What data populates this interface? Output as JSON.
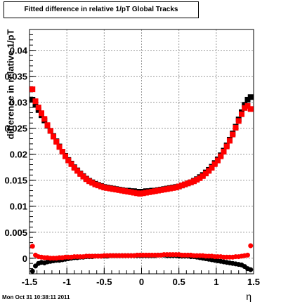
{
  "title": "Fitted difference in relative 1/pT  Global Tracks",
  "timestamp": "Mon Oct 31 10:38:11 2011",
  "chart_data": {
    "type": "scatter",
    "title": "Fitted difference in relative 1/pT  Global Tracks",
    "xlabel": "η",
    "ylabel": "difference in relative 1/pT",
    "xlim": [
      -1.5,
      1.5
    ],
    "ylim": [
      -0.003,
      0.044
    ],
    "xticks": [
      -1.5,
      -1,
      -0.5,
      0,
      0.5,
      1,
      1.5
    ],
    "xtick_labels": [
      "-1.5",
      "-1",
      "-0.5",
      "0",
      "0.5",
      "1",
      "1.5"
    ],
    "yticks": [
      0,
      0.005,
      0.01,
      0.015,
      0.02,
      0.025,
      0.03,
      0.035,
      0.04
    ],
    "ytick_labels": [
      "0",
      "0.005",
      "0.01",
      "0.015",
      "0.02",
      "0.025",
      "0.03",
      "0.035",
      "0.04"
    ],
    "grid": true,
    "legend": false,
    "colors": {
      "black": "#000000",
      "red": "#ff0000"
    },
    "x": [
      -1.46,
      -1.42,
      -1.38,
      -1.34,
      -1.3,
      -1.26,
      -1.22,
      -1.18,
      -1.14,
      -1.1,
      -1.06,
      -1.02,
      -0.98,
      -0.94,
      -0.9,
      -0.86,
      -0.82,
      -0.78,
      -0.74,
      -0.7,
      -0.66,
      -0.62,
      -0.58,
      -0.54,
      -0.5,
      -0.46,
      -0.42,
      -0.38,
      -0.34,
      -0.3,
      -0.26,
      -0.22,
      -0.18,
      -0.14,
      -0.1,
      -0.06,
      -0.02,
      0.02,
      0.06,
      0.1,
      0.14,
      0.18,
      0.22,
      0.26,
      0.3,
      0.34,
      0.38,
      0.42,
      0.46,
      0.5,
      0.54,
      0.58,
      0.62,
      0.66,
      0.7,
      0.74,
      0.78,
      0.82,
      0.86,
      0.9,
      0.94,
      0.98,
      1.02,
      1.06,
      1.1,
      1.14,
      1.18,
      1.22,
      1.26,
      1.3,
      1.34,
      1.38,
      1.42,
      1.46
    ],
    "series": [
      {
        "color": "#000000",
        "marker": "square",
        "values": [
          0.0305,
          0.0295,
          0.0285,
          0.0275,
          0.0265,
          0.0255,
          0.0245,
          0.0235,
          0.0225,
          0.0215,
          0.0205,
          0.0197,
          0.0189,
          0.0182,
          0.0175,
          0.0169,
          0.0163,
          0.0158,
          0.0153,
          0.0149,
          0.0146,
          0.0143,
          0.0141,
          0.0139,
          0.0137,
          0.0136,
          0.0135,
          0.0134,
          0.0133,
          0.0132,
          0.0131,
          0.013,
          0.013,
          0.0129,
          0.0129,
          0.0128,
          0.0128,
          0.0128,
          0.0129,
          0.0129,
          0.013,
          0.013,
          0.0131,
          0.0132,
          0.0133,
          0.0134,
          0.0135,
          0.0136,
          0.0137,
          0.0138,
          0.014,
          0.0142,
          0.0144,
          0.0146,
          0.0149,
          0.0152,
          0.0156,
          0.016,
          0.0165,
          0.017,
          0.0176,
          0.0183,
          0.019,
          0.0198,
          0.0207,
          0.0217,
          0.0228,
          0.024,
          0.0253,
          0.0267,
          0.0281,
          0.0295,
          0.0305,
          0.031
        ]
      },
      {
        "color": "#ff0000",
        "marker": "square",
        "values": [
          0.0325,
          0.0302,
          0.029,
          0.0279,
          0.0268,
          0.0256,
          0.0245,
          0.0234,
          0.0224,
          0.0214,
          0.0205,
          0.0196,
          0.0188,
          0.0181,
          0.0174,
          0.0168,
          0.0162,
          0.0157,
          0.0152,
          0.0148,
          0.0145,
          0.0142,
          0.014,
          0.0138,
          0.0136,
          0.0135,
          0.0134,
          0.0133,
          0.0132,
          0.0131,
          0.013,
          0.0129,
          0.0128,
          0.0127,
          0.0126,
          0.0125,
          0.0124,
          0.0125,
          0.0126,
          0.0127,
          0.0128,
          0.0129,
          0.013,
          0.0131,
          0.0132,
          0.0133,
          0.0134,
          0.0135,
          0.0136,
          0.0138,
          0.014,
          0.0142,
          0.0144,
          0.0146,
          0.0148,
          0.0151,
          0.0154,
          0.0158,
          0.0163,
          0.0168,
          0.0174,
          0.0181,
          0.0188,
          0.0196,
          0.0205,
          0.0215,
          0.0226,
          0.0238,
          0.0251,
          0.0264,
          0.0277,
          0.0289,
          0.0293,
          0.0287
        ]
      },
      {
        "color": "#000000",
        "marker": "circle",
        "values": [
          -0.0025,
          -0.0015,
          -0.001,
          -0.0008,
          -0.0009,
          -0.0007,
          -0.0006,
          -0.0005,
          -0.0004,
          -0.0004,
          -0.0003,
          -0.0002,
          -0.0001,
          0.0,
          0.0001,
          0.0001,
          0.0002,
          0.0002,
          0.0003,
          0.0003,
          0.0003,
          0.0004,
          0.0004,
          0.0004,
          0.0004,
          0.0004,
          0.0005,
          0.0005,
          0.0005,
          0.0005,
          0.0005,
          0.0005,
          0.0005,
          0.0005,
          0.0005,
          0.0005,
          0.0005,
          0.0005,
          0.0005,
          0.0005,
          0.0005,
          0.0005,
          0.0006,
          0.0006,
          0.0006,
          0.0005,
          0.0005,
          0.0005,
          0.0005,
          0.0004,
          0.0004,
          0.0004,
          0.0004,
          0.0003,
          0.0003,
          0.0002,
          0.0001,
          0.0,
          -0.0001,
          -0.0002,
          -0.0003,
          -0.0004,
          -0.0005,
          -0.0006,
          -0.0007,
          -0.0008,
          -0.0009,
          -0.001,
          -0.0011,
          -0.0012,
          -0.0013,
          -0.0016,
          -0.002,
          -0.0022
        ]
      },
      {
        "color": "#ff0000",
        "marker": "circle",
        "values": [
          0.0023,
          0.0006,
          0.0003,
          0.0002,
          0.0001,
          0.0001,
          0.0,
          0.0,
          0.0,
          0.0001,
          0.0001,
          0.0002,
          0.0002,
          0.0002,
          0.0003,
          0.0003,
          0.0003,
          0.0003,
          0.0004,
          0.0004,
          0.0004,
          0.0004,
          0.0004,
          0.0004,
          0.0005,
          0.0005,
          0.0005,
          0.0005,
          0.0005,
          0.0005,
          0.0005,
          0.0005,
          0.0005,
          0.0005,
          0.0005,
          0.0006,
          0.0006,
          0.0006,
          0.0006,
          0.0006,
          0.0006,
          0.0006,
          0.0006,
          0.0006,
          0.0007,
          0.0007,
          0.0007,
          0.0007,
          0.0007,
          0.0007,
          0.0006,
          0.0006,
          0.0006,
          0.0006,
          0.0005,
          0.0005,
          0.0005,
          0.0005,
          0.0004,
          0.0004,
          0.0004,
          0.0003,
          0.0003,
          0.0003,
          0.0002,
          0.0002,
          0.0002,
          0.0002,
          0.0003,
          0.0003,
          0.0004,
          0.0005,
          0.0006,
          0.0024
        ]
      }
    ]
  }
}
